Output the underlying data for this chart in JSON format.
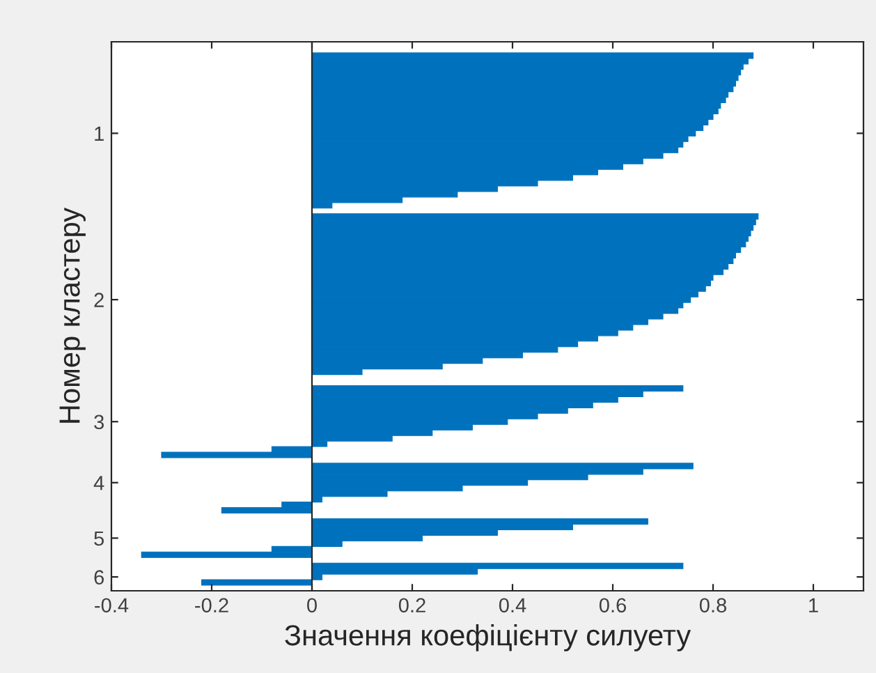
{
  "chart_data": {
    "type": "bar",
    "orientation": "horizontal",
    "xlabel": "Значення коефіцієнту силуету",
    "ylabel": "Номер кластеру",
    "categories": [
      null,
      null,
      null,
      null,
      null,
      null,
      null,
      null,
      null,
      null,
      null,
      null,
      null,
      null,
      "1",
      null,
      null,
      null,
      null,
      null,
      null,
      null,
      null,
      null,
      null,
      null,
      null,
      null,
      null,
      null,
      null,
      null,
      null,
      null,
      null,
      null,
      null,
      null,
      null,
      null,
      null,
      null,
      null,
      null,
      "2",
      null,
      null,
      null,
      null,
      null,
      null,
      null,
      null,
      null,
      null,
      null,
      null,
      null,
      null,
      null,
      null,
      null,
      null,
      null,
      null,
      null,
      "3",
      null,
      null,
      null,
      null,
      null,
      null,
      null,
      null,
      null,
      null,
      "4",
      null,
      null,
      null,
      null,
      null,
      null,
      null,
      null,
      null,
      "5",
      null,
      null,
      null,
      null,
      null,
      null,
      "6",
      null
    ],
    "values": [
      0.88,
      0.87,
      0.86,
      0.855,
      0.85,
      0.845,
      0.84,
      0.83,
      0.825,
      0.815,
      0.81,
      0.8,
      0.79,
      0.78,
      0.765,
      0.75,
      0.74,
      0.73,
      0.7,
      0.66,
      0.62,
      0.57,
      0.52,
      0.45,
      0.37,
      0.29,
      0.18,
      0.04,
      null,
      0.89,
      0.885,
      0.88,
      0.875,
      0.87,
      0.865,
      0.855,
      0.845,
      0.84,
      0.83,
      0.82,
      0.8,
      0.795,
      0.785,
      0.77,
      0.755,
      0.74,
      0.73,
      0.7,
      0.67,
      0.64,
      0.61,
      0.57,
      0.53,
      0.49,
      0.42,
      0.34,
      0.26,
      0.1,
      null,
      null,
      0.74,
      0.66,
      0.61,
      0.56,
      0.51,
      0.45,
      0.39,
      0.32,
      0.24,
      0.16,
      0.03,
      -0.08,
      -0.3,
      null,
      0.76,
      0.66,
      0.55,
      0.43,
      0.3,
      0.15,
      0.02,
      -0.06,
      -0.18,
      null,
      0.67,
      0.52,
      0.37,
      0.22,
      0.06,
      -0.08,
      -0.34,
      null,
      0.74,
      0.33,
      0.02,
      -0.22
    ],
    "color": "#0072bd",
    "xlim": [
      -0.4,
      1.1
    ],
    "xticks": [
      -0.4,
      -0.2,
      0,
      0.2,
      0.4,
      0.6,
      0.8,
      1
    ],
    "ref_lines": [
      {
        "axis": "x",
        "value": 0,
        "color": "#262626"
      }
    ],
    "grid": false,
    "legend": false
  }
}
